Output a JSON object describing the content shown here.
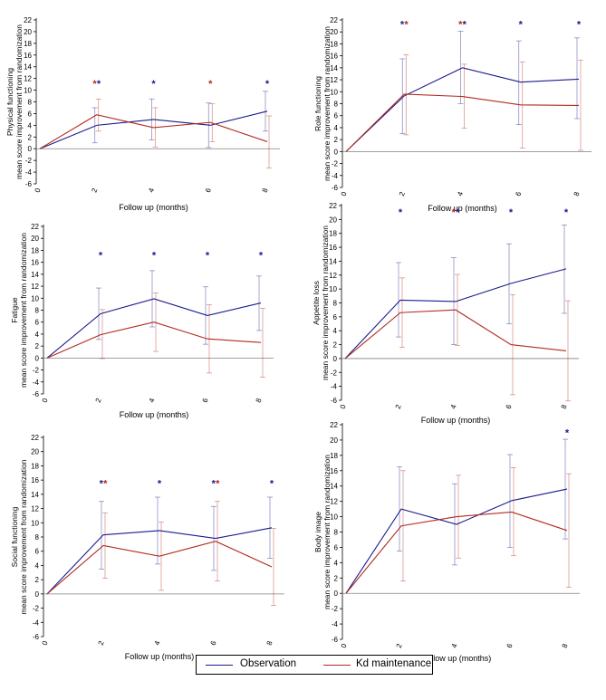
{
  "colors": {
    "observation": "#1a1a8c",
    "kd_maintenance": "#b22a1e",
    "axis": "#000000",
    "grid": "#808080"
  },
  "legend": {
    "observation": "Observation",
    "kd_maintenance": "Kd maintenance"
  },
  "chart_data": [
    {
      "type": "line",
      "title": "",
      "ylabel": [
        "Physical functioning",
        "mean score improvement from randomization"
      ],
      "xlabel": "Follow up (months)",
      "x": [
        0,
        2,
        4,
        6,
        8
      ],
      "xticks": [
        "0",
        "2",
        "4",
        "6",
        "8"
      ],
      "ylim": [
        -6,
        22
      ],
      "yticks": [
        -6,
        -4,
        -2,
        0,
        2,
        4,
        6,
        8,
        10,
        12,
        14,
        16,
        18,
        20,
        22
      ],
      "series": [
        {
          "name": "Observation",
          "values": [
            0,
            4.0,
            5.0,
            4.0,
            6.4
          ],
          "ci_low": [
            0,
            1.0,
            1.5,
            0.2,
            3.0
          ],
          "ci_high": [
            0,
            7.0,
            8.5,
            7.8,
            9.8
          ]
        },
        {
          "name": "Kd maintenance",
          "values": [
            0,
            5.8,
            3.6,
            4.5,
            1.2
          ],
          "ci_low": [
            0,
            3.0,
            0.3,
            1.2,
            -3.3
          ],
          "ci_high": [
            0,
            8.5,
            7.0,
            7.7,
            5.6
          ]
        }
      ],
      "significance": [
        {
          "x": 2,
          "marks": [
            "kd",
            "obs"
          ]
        },
        {
          "x": 4,
          "marks": [
            "obs"
          ]
        },
        {
          "x": 6,
          "marks": [
            "kd"
          ]
        },
        {
          "x": 8,
          "marks": [
            "obs"
          ]
        }
      ],
      "sig_y": 11.2
    },
    {
      "type": "line",
      "title": "",
      "ylabel": [
        "Role functioning",
        "mean score improvement from randomization"
      ],
      "xlabel": "Follow up (months)",
      "x": [
        0,
        2,
        4,
        6,
        8
      ],
      "xticks": [
        "0",
        "2",
        "4",
        "6",
        "8"
      ],
      "ylim": [
        -6,
        22
      ],
      "yticks": [
        -6,
        -4,
        -2,
        0,
        2,
        4,
        6,
        8,
        10,
        12,
        14,
        16,
        18,
        20,
        22
      ],
      "series": [
        {
          "name": "Observation",
          "values": [
            0,
            9.3,
            14.0,
            11.6,
            12.1
          ],
          "ci_low": [
            0,
            3.0,
            8.0,
            4.5,
            5.5
          ],
          "ci_high": [
            0,
            15.5,
            20.1,
            18.5,
            19.0
          ]
        },
        {
          "name": "Kd maintenance",
          "values": [
            0,
            9.6,
            9.2,
            7.8,
            7.7
          ],
          "ci_low": [
            0,
            2.8,
            3.9,
            0.6,
            0.2
          ],
          "ci_high": [
            0,
            16.2,
            14.6,
            15.0,
            15.3
          ]
        }
      ],
      "significance": [
        {
          "x": 2,
          "marks": [
            "obs",
            "kd"
          ]
        },
        {
          "x": 4,
          "marks": [
            "kd",
            "obs"
          ]
        },
        {
          "x": 6,
          "marks": [
            "obs"
          ]
        },
        {
          "x": 8,
          "marks": [
            "obs"
          ]
        }
      ],
      "sig_y": 21.3
    },
    {
      "type": "line",
      "title": "",
      "ylabel": [
        "Fatigue",
        "mean score improvement from randomization"
      ],
      "xlabel": "Follow up (months)",
      "x": [
        0,
        2,
        4,
        6,
        8
      ],
      "xticks": [
        "0",
        "2",
        "4",
        "6",
        "8"
      ],
      "ylim": [
        -6,
        22
      ],
      "yticks": [
        -6,
        -4,
        -2,
        0,
        2,
        4,
        6,
        8,
        10,
        12,
        14,
        16,
        18,
        20,
        22
      ],
      "series": [
        {
          "name": "Observation",
          "values": [
            0,
            7.4,
            9.9,
            7.1,
            9.2
          ],
          "ci_low": [
            0,
            3.1,
            5.2,
            2.3,
            4.6
          ],
          "ci_high": [
            0,
            11.7,
            14.6,
            11.9,
            13.7
          ]
        },
        {
          "name": "Kd maintenance",
          "values": [
            0,
            3.9,
            6.0,
            3.2,
            2.6
          ],
          "ci_low": [
            0,
            -0.1,
            1.1,
            -2.5,
            -3.2
          ],
          "ci_high": [
            0,
            8.1,
            10.9,
            8.9,
            8.3
          ]
        }
      ],
      "significance": [
        {
          "x": 2,
          "marks": [
            "obs"
          ]
        },
        {
          "x": 4,
          "marks": [
            "obs"
          ]
        },
        {
          "x": 6,
          "marks": [
            "obs"
          ]
        },
        {
          "x": 8,
          "marks": [
            "obs"
          ]
        }
      ],
      "sig_y": 17.2
    },
    {
      "type": "line",
      "title": "",
      "ylabel": [
        "Appetite loss",
        "mean score improvement from randomization"
      ],
      "xlabel": "Follow up (months)",
      "x": [
        0,
        2,
        4,
        6,
        8
      ],
      "xticks": [
        "0",
        "2",
        "4",
        "6",
        "8"
      ],
      "ylim": [
        -6,
        22
      ],
      "yticks": [
        -6,
        -4,
        -2,
        0,
        2,
        4,
        6,
        8,
        10,
        12,
        14,
        16,
        18,
        20,
        22
      ],
      "series": [
        {
          "name": "Observation",
          "values": [
            0,
            8.4,
            8.2,
            10.8,
            12.9
          ],
          "ci_low": [
            0,
            3.1,
            2.0,
            5.0,
            6.5
          ],
          "ci_high": [
            0,
            13.8,
            14.5,
            16.5,
            19.2
          ]
        },
        {
          "name": "Kd maintenance",
          "values": [
            0,
            6.6,
            7.0,
            2.0,
            1.1
          ],
          "ci_low": [
            0,
            1.6,
            1.9,
            -5.2,
            -6.1
          ],
          "ci_high": [
            0,
            11.6,
            12.1,
            9.2,
            8.3
          ]
        }
      ],
      "significance": [
        {
          "x": 2,
          "marks": [
            "obs"
          ]
        },
        {
          "x": 4,
          "marks": [
            "kd",
            "obs"
          ]
        },
        {
          "x": 6,
          "marks": [
            "obs"
          ]
        },
        {
          "x": 8,
          "marks": [
            "obs"
          ]
        }
      ],
      "sig_y": 21.1
    },
    {
      "type": "line",
      "title": "",
      "ylabel": [
        "Social functioning",
        "mean score improvement from randomization"
      ],
      "xlabel": "Follow up (months)",
      "x": [
        0,
        2,
        4,
        6,
        8
      ],
      "xticks": [
        "0",
        "2",
        "4",
        "6",
        "8"
      ],
      "ylim": [
        -6,
        22
      ],
      "yticks": [
        -6,
        -4,
        -2,
        0,
        2,
        4,
        6,
        8,
        10,
        12,
        14,
        16,
        18,
        20,
        22
      ],
      "series": [
        {
          "name": "Observation",
          "values": [
            0,
            8.3,
            8.9,
            7.8,
            9.3
          ],
          "ci_low": [
            0,
            3.5,
            4.2,
            3.3,
            5.0
          ],
          "ci_high": [
            0,
            13.0,
            13.6,
            12.3,
            13.6
          ]
        },
        {
          "name": "Kd maintenance",
          "values": [
            0,
            6.8,
            5.3,
            7.4,
            3.8
          ],
          "ci_low": [
            0,
            2.2,
            0.5,
            1.8,
            -1.6
          ],
          "ci_high": [
            0,
            11.4,
            10.1,
            13.0,
            9.2
          ]
        }
      ],
      "significance": [
        {
          "x": 2,
          "marks": [
            "obs",
            "kd"
          ]
        },
        {
          "x": 4,
          "marks": [
            "obs"
          ]
        },
        {
          "x": 6,
          "marks": [
            "obs",
            "kd"
          ]
        },
        {
          "x": 8,
          "marks": [
            "obs"
          ]
        }
      ],
      "sig_y": 15.6
    },
    {
      "type": "line",
      "title": "",
      "ylabel": [
        "Body image",
        "mean score improvement from randomization"
      ],
      "xlabel": "Follow up (months)",
      "x": [
        0,
        2,
        4,
        6,
        8
      ],
      "xticks": [
        "0",
        "2",
        "4",
        "6",
        "8"
      ],
      "ylim": [
        -6,
        22
      ],
      "yticks": [
        -6,
        -4,
        -2,
        0,
        2,
        4,
        6,
        8,
        10,
        12,
        14,
        16,
        18,
        20,
        22
      ],
      "series": [
        {
          "name": "Observation",
          "values": [
            0,
            11.0,
            9.0,
            12.1,
            13.6
          ],
          "ci_low": [
            0,
            5.5,
            3.7,
            6.0,
            7.1
          ],
          "ci_high": [
            0,
            16.5,
            14.3,
            18.1,
            20.1
          ]
        },
        {
          "name": "Kd maintenance",
          "values": [
            0,
            8.8,
            10.0,
            10.6,
            8.2
          ],
          "ci_low": [
            0,
            1.6,
            4.6,
            4.9,
            0.8
          ],
          "ci_high": [
            0,
            16.0,
            15.4,
            16.4,
            15.6
          ]
        }
      ],
      "significance": [
        {
          "x": 8,
          "marks": [
            "obs"
          ]
        }
      ],
      "sig_y": 21.0
    }
  ]
}
